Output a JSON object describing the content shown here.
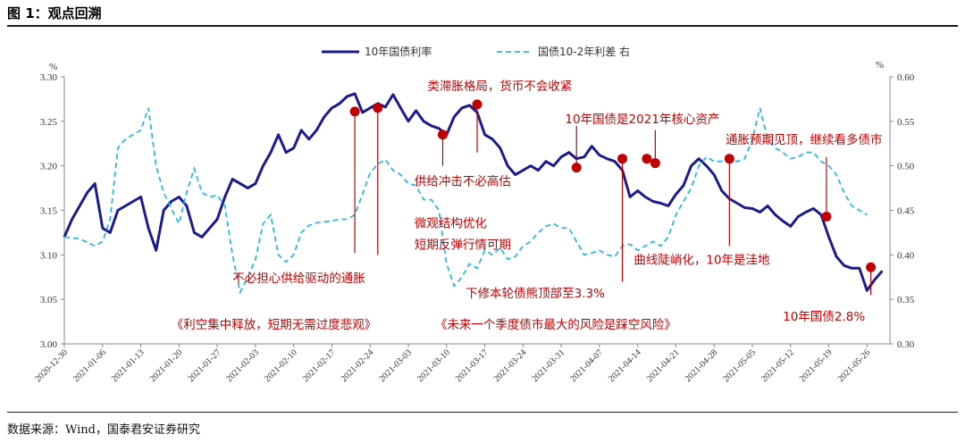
{
  "header": {
    "title": "图 1：观点回溯"
  },
  "footer": {
    "source": "数据来源：Wind，国泰君安证券研究"
  },
  "colors": {
    "primary_line": "#1b1b8c",
    "secondary_line": "#2eb6e6",
    "annotation": "#c00000",
    "marker": "#c00000"
  },
  "chart_data": {
    "type": "line",
    "legend_position": "top-center",
    "grid": false,
    "left_axis": {
      "unit": "%",
      "ylim": [
        3.0,
        3.3
      ],
      "ticks": [
        "3.00",
        "3.05",
        "3.10",
        "3.15",
        "3.20",
        "3.25",
        "3.30"
      ]
    },
    "right_axis": {
      "unit": "%",
      "ylim": [
        0.3,
        0.6
      ],
      "ticks": [
        "0.30",
        "0.35",
        "0.40",
        "0.45",
        "0.50",
        "0.55",
        "0.60"
      ]
    },
    "x_ticks": [
      "2020-12-30",
      "2021-01-06",
      "2021-01-13",
      "2021-01-20",
      "2021-01-27",
      "2021-02-03",
      "2021-02-10",
      "2021-02-17",
      "2021-02-24",
      "2021-03-03",
      "2021-03-10",
      "2021-03-17",
      "2021-03-24",
      "2021-03-31",
      "2021-04-07",
      "2021-04-14",
      "2021-04-21",
      "2021-04-28",
      "2021-05-05",
      "2021-05-12",
      "2021-05-19",
      "2021-05-26"
    ],
    "series": [
      {
        "name": "10年国债利率",
        "axis": "left",
        "points": [
          [
            0,
            3.12
          ],
          [
            1,
            3.14
          ],
          [
            3,
            3.17
          ],
          [
            4,
            3.18
          ],
          [
            5,
            3.13
          ],
          [
            6,
            3.125
          ],
          [
            7,
            3.15
          ],
          [
            9,
            3.16
          ],
          [
            10,
            3.165
          ],
          [
            11,
            3.13
          ],
          [
            12,
            3.105
          ],
          [
            13,
            3.15
          ],
          [
            14,
            3.16
          ],
          [
            15,
            3.165
          ],
          [
            16,
            3.155
          ],
          [
            17,
            3.125
          ],
          [
            18,
            3.12
          ],
          [
            19,
            3.13
          ],
          [
            20,
            3.14
          ],
          [
            21,
            3.165
          ],
          [
            22,
            3.185
          ],
          [
            23,
            3.18
          ],
          [
            24,
            3.175
          ],
          [
            25,
            3.18
          ],
          [
            26,
            3.2
          ],
          [
            27,
            3.215
          ],
          [
            28,
            3.235
          ],
          [
            29,
            3.215
          ],
          [
            30,
            3.22
          ],
          [
            31,
            3.24
          ],
          [
            32,
            3.23
          ],
          [
            33,
            3.24
          ],
          [
            34,
            3.255
          ],
          [
            35,
            3.265
          ],
          [
            36,
            3.27
          ],
          [
            37,
            3.278
          ],
          [
            38,
            3.281
          ],
          [
            39,
            3.26
          ],
          [
            40,
            3.265
          ],
          [
            41,
            3.27
          ],
          [
            42,
            3.266
          ],
          [
            43,
            3.28
          ],
          [
            44,
            3.265
          ],
          [
            45,
            3.25
          ],
          [
            46,
            3.262
          ],
          [
            47,
            3.25
          ],
          [
            48,
            3.245
          ],
          [
            49,
            3.242
          ],
          [
            50,
            3.235
          ],
          [
            51,
            3.255
          ],
          [
            52,
            3.265
          ],
          [
            53,
            3.268
          ],
          [
            54,
            3.26
          ],
          [
            55,
            3.235
          ],
          [
            56,
            3.23
          ],
          [
            57,
            3.22
          ],
          [
            58,
            3.2
          ],
          [
            59,
            3.19
          ],
          [
            60,
            3.195
          ],
          [
            61,
            3.2
          ],
          [
            62,
            3.195
          ],
          [
            63,
            3.205
          ],
          [
            64,
            3.2
          ],
          [
            65,
            3.21
          ],
          [
            66,
            3.215
          ],
          [
            67,
            3.208
          ],
          [
            68,
            3.21
          ],
          [
            69,
            3.222
          ],
          [
            70,
            3.212
          ],
          [
            71,
            3.208
          ],
          [
            72,
            3.205
          ],
          [
            73,
            3.195
          ],
          [
            74,
            3.165
          ],
          [
            75,
            3.172
          ],
          [
            76,
            3.165
          ],
          [
            77,
            3.16
          ],
          [
            78,
            3.158
          ],
          [
            79,
            3.155
          ],
          [
            80,
            3.168
          ],
          [
            81,
            3.178
          ],
          [
            82,
            3.2
          ],
          [
            83,
            3.208
          ],
          [
            84,
            3.2
          ],
          [
            85,
            3.19
          ],
          [
            86,
            3.172
          ],
          [
            87,
            3.163
          ],
          [
            88,
            3.158
          ],
          [
            89,
            3.153
          ],
          [
            90,
            3.152
          ],
          [
            91,
            3.148
          ],
          [
            92,
            3.155
          ],
          [
            93,
            3.145
          ],
          [
            94,
            3.138
          ],
          [
            95,
            3.132
          ],
          [
            96,
            3.143
          ],
          [
            97,
            3.148
          ],
          [
            98,
            3.152
          ],
          [
            99,
            3.145
          ],
          [
            100,
            3.12
          ],
          [
            101,
            3.098
          ],
          [
            102,
            3.088
          ],
          [
            103,
            3.085
          ],
          [
            104,
            3.085
          ],
          [
            105,
            3.06
          ],
          [
            106,
            3.072
          ],
          [
            107,
            3.082
          ]
        ]
      },
      {
        "name": "国债10-2年利差 右",
        "axis": "right",
        "points": [
          [
            0,
            0.42
          ],
          [
            2,
            0.418
          ],
          [
            4,
            0.41
          ],
          [
            5,
            0.415
          ],
          [
            6,
            0.44
          ],
          [
            7,
            0.52
          ],
          [
            8,
            0.53
          ],
          [
            9,
            0.535
          ],
          [
            10,
            0.54
          ],
          [
            11,
            0.565
          ],
          [
            12,
            0.5
          ],
          [
            13,
            0.47
          ],
          [
            14,
            0.452
          ],
          [
            15,
            0.435
          ],
          [
            16,
            0.47
          ],
          [
            17,
            0.497
          ],
          [
            18,
            0.47
          ],
          [
            19,
            0.465
          ],
          [
            20,
            0.467
          ],
          [
            21,
            0.455
          ],
          [
            22,
            0.4
          ],
          [
            23,
            0.358
          ],
          [
            24,
            0.375
          ],
          [
            25,
            0.395
          ],
          [
            26,
            0.435
          ],
          [
            27,
            0.445
          ],
          [
            28,
            0.4
          ],
          [
            29,
            0.392
          ],
          [
            30,
            0.4
          ],
          [
            31,
            0.425
          ],
          [
            32,
            0.433
          ],
          [
            33,
            0.436
          ],
          [
            34,
            0.437
          ],
          [
            35,
            0.438
          ],
          [
            36,
            0.44
          ],
          [
            37,
            0.44
          ],
          [
            38,
            0.445
          ],
          [
            39,
            0.468
          ],
          [
            40,
            0.492
          ],
          [
            41,
            0.502
          ],
          [
            42,
            0.507
          ],
          [
            43,
            0.495
          ],
          [
            44,
            0.49
          ],
          [
            45,
            0.48
          ],
          [
            46,
            0.478
          ],
          [
            47,
            0.462
          ],
          [
            48,
            0.462
          ],
          [
            49,
            0.45
          ],
          [
            50,
            0.39
          ],
          [
            51,
            0.365
          ],
          [
            52,
            0.375
          ],
          [
            53,
            0.39
          ],
          [
            54,
            0.385
          ],
          [
            55,
            0.405
          ],
          [
            56,
            0.4
          ],
          [
            57,
            0.408
          ],
          [
            58,
            0.395
          ],
          [
            59,
            0.398
          ],
          [
            60,
            0.41
          ],
          [
            61,
            0.415
          ],
          [
            62,
            0.425
          ],
          [
            63,
            0.432
          ],
          [
            64,
            0.435
          ],
          [
            65,
            0.43
          ],
          [
            66,
            0.43
          ],
          [
            67,
            0.415
          ],
          [
            68,
            0.4
          ],
          [
            69,
            0.402
          ],
          [
            70,
            0.405
          ],
          [
            71,
            0.4
          ],
          [
            72,
            0.398
          ],
          [
            73,
            0.41
          ],
          [
            74,
            0.412
          ],
          [
            75,
            0.405
          ],
          [
            76,
            0.41
          ],
          [
            77,
            0.415
          ],
          [
            78,
            0.41
          ],
          [
            79,
            0.42
          ],
          [
            80,
            0.445
          ],
          [
            81,
            0.46
          ],
          [
            82,
            0.475
          ],
          [
            83,
            0.5
          ],
          [
            84,
            0.51
          ],
          [
            85,
            0.505
          ],
          [
            86,
            0.505
          ],
          [
            87,
            0.505
          ],
          [
            88,
            0.505
          ],
          [
            89,
            0.508
          ],
          [
            90,
            0.53
          ],
          [
            91,
            0.565
          ],
          [
            92,
            0.53
          ],
          [
            93,
            0.52
          ],
          [
            94,
            0.515
          ],
          [
            95,
            0.508
          ],
          [
            96,
            0.51
          ],
          [
            97,
            0.515
          ],
          [
            98,
            0.515
          ],
          [
            99,
            0.505
          ],
          [
            100,
            0.5
          ],
          [
            101,
            0.49
          ],
          [
            102,
            0.47
          ],
          [
            103,
            0.455
          ],
          [
            104,
            0.45
          ],
          [
            105,
            0.445
          ]
        ]
      }
    ],
    "markers": [
      {
        "x": 38,
        "y": 3.261,
        "line_to": 3.102
      },
      {
        "x": 41,
        "y": 3.265,
        "line_to": 3.1
      },
      {
        "x": 54,
        "y": 3.269,
        "line_to": 3.215
      },
      {
        "x": 49.5,
        "y": 3.235,
        "line_to": 3.2
      },
      {
        "x": 67,
        "y": 3.198,
        "line_to": 3.245
      },
      {
        "x": 73,
        "y": 3.208,
        "line_to": 3.07
      },
      {
        "x": 76.2,
        "y": 3.208,
        "line_to": 3.207
      },
      {
        "x": 77.3,
        "y": 3.203,
        "line_to": 3.24
      },
      {
        "x": 87,
        "y": 3.208,
        "line_to": 3.11
      },
      {
        "x": 99.7,
        "y": 3.143,
        "line_to": 3.21
      },
      {
        "x": 105.5,
        "y": 3.086,
        "line_to": 3.055
      }
    ],
    "annotations": [
      {
        "text": "类滞胀格局，货币不会收紧",
        "ax": 47.5,
        "ay": 3.285
      },
      {
        "text": "10年国债是2021年核心资产",
        "ax": 65.5,
        "ay": 3.248
      },
      {
        "text": "通胀预期见顶，继续看多债市",
        "ax": 86.5,
        "ay": 3.225
      },
      {
        "text": "供给冲击不必高估",
        "ax": 45.8,
        "ay": 3.178
      },
      {
        "text": "微观结构优化",
        "ax": 45.8,
        "ay": 3.131
      },
      {
        "text": "短期反弹行情可期",
        "ax": 45.8,
        "ay": 3.107
      },
      {
        "text": "不必担心供给驱动的通胀",
        "ax": 22,
        "ay": 3.069
      },
      {
        "text": "曲线陡峭化，10年是洼地",
        "ax": 74.5,
        "ay": 3.09
      },
      {
        "text": "下修本轮债熊顶部至3.3%",
        "ax": 52.5,
        "ay": 3.052
      },
      {
        "text": "《利空集中释放，短期无需过度悲观》",
        "ax": 14,
        "ay": 3.017
      },
      {
        "text": "《未来一个季度债市最大的风险是踩空风险》",
        "ax": 48.5,
        "ay": 3.017
      },
      {
        "text": "10年国债2.8%",
        "ax": 94,
        "ay": 3.026
      }
    ]
  }
}
